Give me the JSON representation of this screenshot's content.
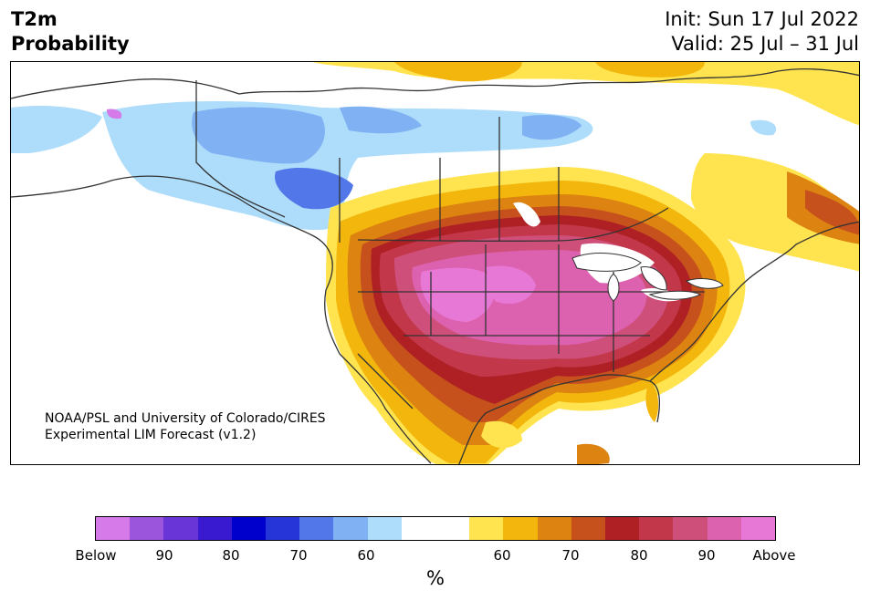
{
  "title": {
    "line1": "T2m",
    "line2": "Probability"
  },
  "dates": {
    "init": "Init: Sun 17 Jul 2022",
    "valid": "Valid: 25 Jul – 31 Jul"
  },
  "credit": {
    "line1": "NOAA/PSL and University of Colorado/CIRES",
    "line2": "Experimental LIM Forecast (v1.2)"
  },
  "colorbar": {
    "unit": "%",
    "colors": [
      "#d57ae8",
      "#9b55dd",
      "#6a35d6",
      "#3a1ad0",
      "#0000cd",
      "#2535d8",
      "#5177e9",
      "#7fb1f3",
      "#aedcfb",
      "#ffffff",
      "#ffffff",
      "#ffe44f",
      "#f2b60c",
      "#dc8311",
      "#c7511c",
      "#ae2024",
      "#c2374a",
      "#cf4f7b",
      "#dc61ae",
      "#e878d6"
    ],
    "ticks": [
      {
        "label": "Below"
      },
      {
        "label": "90"
      },
      {
        "label": "80"
      },
      {
        "label": "70"
      },
      {
        "label": "60"
      },
      {
        "label": "60"
      },
      {
        "label": "70"
      },
      {
        "label": "80"
      },
      {
        "label": "90"
      },
      {
        "label": "Above"
      }
    ]
  }
}
